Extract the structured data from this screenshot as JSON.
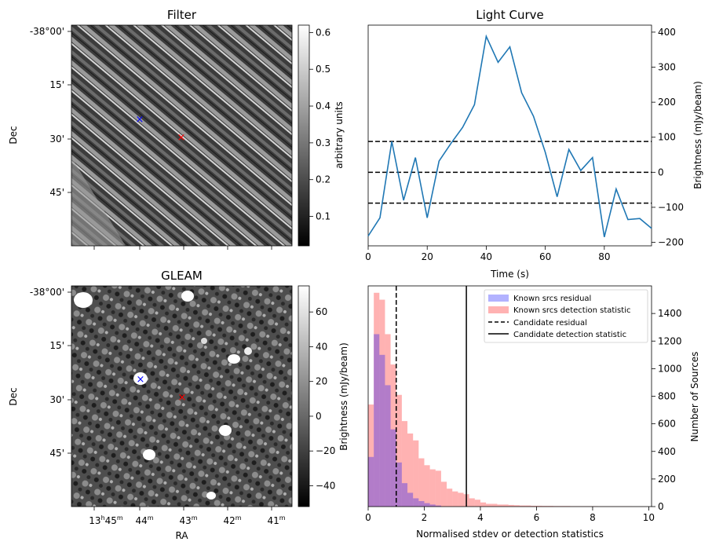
{
  "chart_data": [
    {
      "type": "heatmap",
      "title": "Filter",
      "ylabel": "Dec",
      "y_tick_labels": [
        "-38°00'",
        "15'",
        "30'",
        "45'"
      ],
      "colorbar": {
        "label": "arbitrary units",
        "ticks": [
          "0.1",
          "0.2",
          "0.3",
          "0.4",
          "0.5",
          "0.6"
        ],
        "range": [
          0.02,
          0.62
        ],
        "colormap": "greyscale"
      },
      "markers": [
        {
          "symbol": "×",
          "color": "#0000ff"
        },
        {
          "symbol": "×",
          "color": "#ff0000"
        }
      ]
    },
    {
      "type": "line",
      "title": "Light Curve",
      "xlabel": "Time (s)",
      "ylabel": "Brightness (mJy/beam)",
      "xlim": [
        0,
        96
      ],
      "ylim": [
        -210,
        420
      ],
      "x_ticks": [
        "0",
        "20",
        "40",
        "60",
        "80"
      ],
      "y_ticks": [
        "−200",
        "−100",
        "0",
        "100",
        "200",
        "300",
        "400"
      ],
      "series": [
        {
          "color": "#1f77b4",
          "x": [
            0,
            4,
            8,
            12,
            16,
            20,
            24,
            28,
            32,
            36,
            40,
            44,
            48,
            52,
            56,
            60,
            64,
            68,
            72,
            76,
            80,
            84,
            88,
            92,
            96
          ],
          "y": [
            -182,
            -130,
            88,
            -80,
            42,
            -130,
            32,
            82,
            128,
            193,
            388,
            314,
            358,
            227,
            160,
            57,
            -70,
            65,
            5,
            42,
            -185,
            -48,
            -135,
            -132,
            -160
          ]
        }
      ],
      "reference_lines": [
        {
          "y": 88,
          "style": "dashed"
        },
        {
          "y": 0,
          "style": "dashed"
        },
        {
          "y": -88,
          "style": "dashed"
        }
      ]
    },
    {
      "type": "heatmap",
      "title": "GLEAM",
      "xlabel": "RA",
      "ylabel": "Dec",
      "x_tick_labels": [
        "13h45m",
        "44m",
        "43m",
        "42m",
        "41m"
      ],
      "y_tick_labels": [
        "-38°00'",
        "15'",
        "30'",
        "45'"
      ],
      "colorbar": {
        "label": "Brightness (mJy/beam)",
        "ticks": [
          "−40",
          "−20",
          "0",
          "20",
          "40",
          "60"
        ],
        "range": [
          -52,
          75
        ],
        "colormap": "greyscale"
      },
      "markers": [
        {
          "symbol": "×",
          "color": "#0000ff"
        },
        {
          "symbol": "×",
          "color": "#ff0000"
        }
      ]
    },
    {
      "type": "bar",
      "xlabel": "Normalised stdev or detection statistics",
      "ylabel": "Number of Sources",
      "xlim": [
        0,
        10.1
      ],
      "ylim": [
        0,
        1600
      ],
      "x_ticks": [
        "0",
        "2",
        "4",
        "6",
        "8",
        "10"
      ],
      "y_ticks": [
        "0",
        "200",
        "400",
        "600",
        "800",
        "1000",
        "1200",
        "1400"
      ],
      "bin_width": 0.2,
      "series": [
        {
          "name": "Known srcs residual",
          "color": "#0000ff",
          "x": [
            0.0,
            0.2,
            0.4,
            0.6,
            0.8,
            1.0,
            1.2,
            1.4,
            1.6,
            1.8,
            2.0,
            2.2,
            2.4
          ],
          "values": [
            360,
            1250,
            1100,
            880,
            560,
            320,
            170,
            100,
            60,
            40,
            25,
            15,
            8
          ]
        },
        {
          "name": "Known srcs detection statistic",
          "color": "#ff0000",
          "x": [
            0.0,
            0.2,
            0.4,
            0.6,
            0.8,
            1.0,
            1.2,
            1.4,
            1.6,
            1.8,
            2.0,
            2.2,
            2.4,
            2.6,
            2.8,
            3.0,
            3.2,
            3.4,
            3.6,
            3.8,
            4.0,
            4.2,
            4.4,
            4.6,
            4.8,
            5.0,
            5.2,
            5.4,
            5.6,
            5.8,
            6.0,
            6.2,
            6.4,
            6.6,
            6.8,
            7.0,
            7.2,
            7.4,
            7.6,
            7.8,
            8.0,
            8.2,
            8.4,
            8.6,
            8.8,
            9.0,
            9.2,
            9.4,
            9.6,
            9.8
          ],
          "values": [
            740,
            1550,
            1500,
            1250,
            1030,
            810,
            620,
            530,
            480,
            350,
            300,
            270,
            260,
            180,
            130,
            110,
            100,
            90,
            60,
            50,
            30,
            20,
            20,
            15,
            15,
            12,
            10,
            8,
            8,
            6,
            6,
            5,
            5,
            4,
            4,
            4,
            3,
            3,
            3,
            3,
            3,
            2,
            2,
            2,
            2,
            2,
            2,
            1,
            1,
            1
          ]
        }
      ],
      "reference_lines": [
        {
          "name": "Candidate residual",
          "x": 1.0,
          "style": "dashed"
        },
        {
          "name": "Candidate detection statistic",
          "x": 3.5,
          "style": "solid"
        }
      ],
      "legend": {
        "position": "top-right",
        "entries": [
          "Known srcs residual",
          "Known srcs detection statistic",
          "Candidate residual",
          "Candidate detection statistic"
        ]
      }
    }
  ]
}
